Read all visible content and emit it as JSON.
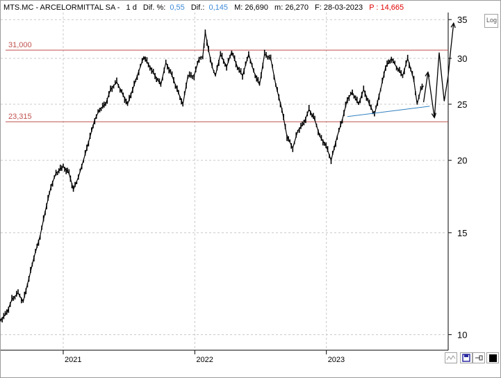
{
  "header": {
    "symbol": "MTS.MC - ARCELORMITTAL SA -",
    "timeframe": "1 d",
    "difpct_label": "Dif. %:",
    "difpct_value": "0,55",
    "dif_label": "Dif.:",
    "dif_value": "0,145",
    "max_label": "M: 26,690",
    "min_label": "m: 26,270",
    "date_label": "F: 28-03-2023",
    "p_label": "P : 14,665"
  },
  "log_button": "Log",
  "levels": [
    {
      "label": "31,000",
      "value": 31.0
    },
    {
      "label": "23,315",
      "value": 23.315
    }
  ],
  "colors": {
    "level_line": "#c0504d",
    "trendline": "#2f7fbf",
    "candles": "#000000",
    "projection": "#000000"
  },
  "chart_data": {
    "type": "line",
    "title": "MTS.MC - ARCELORMITTAL SA -",
    "y_scale": "log",
    "ylim": [
      9.4,
      36
    ],
    "y_ticks": [
      {
        "label": "35",
        "value": 35
      },
      {
        "label": "30",
        "value": 30
      },
      {
        "label": "25",
        "value": 25
      },
      {
        "label": "20",
        "value": 20
      },
      {
        "label": "15",
        "value": 15
      },
      {
        "label": "10",
        "value": 10
      }
    ],
    "x_ticks": [
      {
        "label": "2021",
        "date": "2021-01-04"
      },
      {
        "label": "2022",
        "date": "2022-01-03"
      },
      {
        "label": "2023",
        "date": "2023-01-02"
      }
    ],
    "xlim": [
      "2020-07-15",
      "2023-12-05"
    ],
    "series": [
      {
        "role": "price",
        "points": [
          [
            "2020-07-15",
            10.6
          ],
          [
            "2020-08-01",
            10.9
          ],
          [
            "2020-08-15",
            11.5
          ],
          [
            "2020-09-01",
            11.8
          ],
          [
            "2020-09-15",
            11.4
          ],
          [
            "2020-10-01",
            12.5
          ],
          [
            "2020-10-15",
            13.6
          ],
          [
            "2020-11-01",
            14.8
          ],
          [
            "2020-11-15",
            16.3
          ],
          [
            "2020-12-01",
            18.0
          ],
          [
            "2020-12-15",
            19.0
          ],
          [
            "2021-01-04",
            19.5
          ],
          [
            "2021-01-20",
            19.0
          ],
          [
            "2021-02-01",
            17.8
          ],
          [
            "2021-02-15",
            18.7
          ],
          [
            "2021-03-01",
            20.0
          ],
          [
            "2021-03-15",
            21.5
          ],
          [
            "2021-04-01",
            23.5
          ],
          [
            "2021-04-15",
            24.5
          ],
          [
            "2021-05-01",
            25.0
          ],
          [
            "2021-05-15",
            26.5
          ],
          [
            "2021-06-01",
            27.3
          ],
          [
            "2021-06-15",
            26.2
          ],
          [
            "2021-07-01",
            25.0
          ],
          [
            "2021-07-15",
            26.5
          ],
          [
            "2021-08-01",
            28.5
          ],
          [
            "2021-08-15",
            30.2
          ],
          [
            "2021-09-01",
            29.0
          ],
          [
            "2021-09-15",
            28.0
          ],
          [
            "2021-10-01",
            27.0
          ],
          [
            "2021-10-15",
            29.5
          ],
          [
            "2021-11-01",
            28.0
          ],
          [
            "2021-11-15",
            26.5
          ],
          [
            "2021-12-01",
            25.0
          ],
          [
            "2021-12-15",
            28.0
          ],
          [
            "2022-01-01",
            28.0
          ],
          [
            "2022-01-15",
            30.0
          ],
          [
            "2022-01-25",
            30.2
          ],
          [
            "2022-02-01",
            33.3
          ],
          [
            "2022-02-10",
            31.0
          ],
          [
            "2022-02-20",
            29.0
          ],
          [
            "2022-03-01",
            28.0
          ],
          [
            "2022-03-15",
            30.5
          ],
          [
            "2022-04-01",
            29.0
          ],
          [
            "2022-04-15",
            30.8
          ],
          [
            "2022-05-01",
            29.0
          ],
          [
            "2022-05-15",
            28.0
          ],
          [
            "2022-06-01",
            30.5
          ],
          [
            "2022-06-15",
            28.5
          ],
          [
            "2022-07-01",
            27.0
          ],
          [
            "2022-07-15",
            30.5
          ],
          [
            "2022-08-01",
            30.0
          ],
          [
            "2022-08-15",
            27.0
          ],
          [
            "2022-09-01",
            24.5
          ],
          [
            "2022-09-15",
            22.0
          ],
          [
            "2022-10-01",
            21.0
          ],
          [
            "2022-10-15",
            22.5
          ],
          [
            "2022-11-01",
            23.2
          ],
          [
            "2022-11-15",
            24.5
          ],
          [
            "2022-12-01",
            23.5
          ],
          [
            "2022-12-15",
            22.0
          ],
          [
            "2023-01-01",
            21.2
          ],
          [
            "2023-01-15",
            20.0
          ],
          [
            "2023-02-01",
            22.0
          ],
          [
            "2023-02-15",
            23.5
          ],
          [
            "2023-03-01",
            25.5
          ],
          [
            "2023-03-15",
            26.2
          ],
          [
            "2023-04-01",
            25.0
          ],
          [
            "2023-04-15",
            26.5
          ],
          [
            "2023-05-01",
            25.0
          ],
          [
            "2023-05-15",
            24.0
          ],
          [
            "2023-06-01",
            26.5
          ],
          [
            "2023-06-15",
            29.0
          ],
          [
            "2023-07-01",
            30.0
          ],
          [
            "2023-07-15",
            29.0
          ],
          [
            "2023-08-01",
            28.0
          ],
          [
            "2023-08-15",
            30.0
          ],
          [
            "2023-09-01",
            27.5
          ],
          [
            "2023-09-10",
            25.0
          ],
          [
            "2023-09-20",
            26.5
          ],
          [
            "2023-09-28",
            26.9
          ]
        ]
      },
      {
        "role": "trendline",
        "points": [
          [
            "2023-03-01",
            23.8
          ],
          [
            "2023-10-15",
            24.8
          ]
        ]
      },
      {
        "role": "projection",
        "points": [
          [
            "2023-09-28",
            25.2
          ],
          [
            "2023-10-10",
            28.4
          ],
          [
            "2023-10-28",
            23.7
          ],
          [
            "2023-11-10",
            30.7
          ],
          [
            "2023-11-24",
            25.3
          ],
          [
            "2023-12-05",
            28.0
          ],
          [
            "2023-12-12",
            31.0
          ],
          [
            "2023-12-20",
            34.5
          ]
        ]
      }
    ]
  }
}
